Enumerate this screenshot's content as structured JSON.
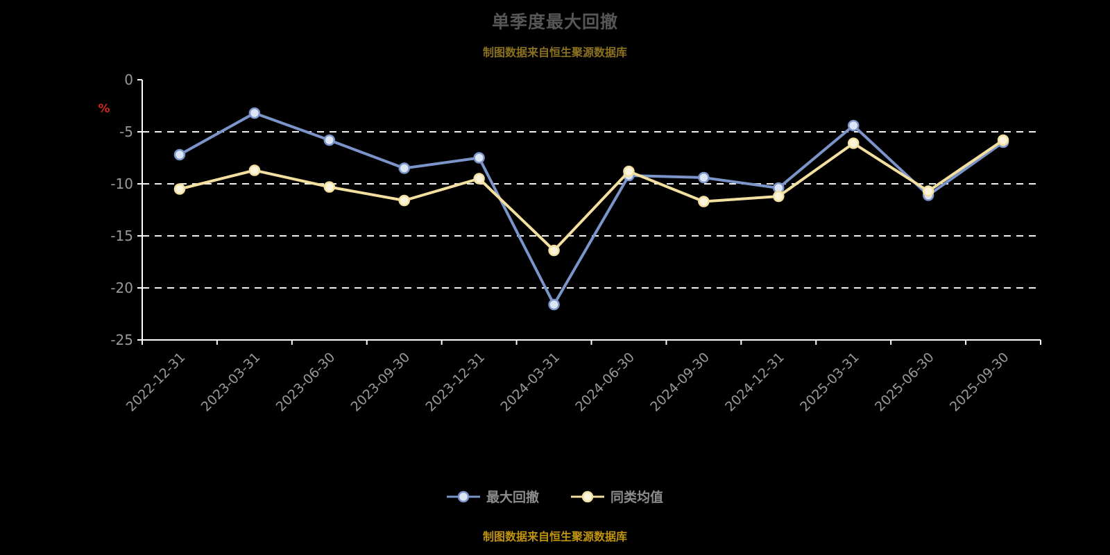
{
  "header": {
    "title": "单季度最大回撤",
    "subtitle": "制图数据来自恒生聚源数据库"
  },
  "footer": {
    "text": "制图数据来自恒生聚源数据库"
  },
  "chart_data": {
    "type": "line",
    "title": "单季度最大回撤",
    "ylabel": "%",
    "ylabel_color": "#d42a1e",
    "categories": [
      "2022-12-31",
      "2023-03-31",
      "2023-06-30",
      "2023-09-30",
      "2023-12-31",
      "2024-03-31",
      "2024-06-30",
      "2024-09-30",
      "2024-12-31",
      "2025-03-31",
      "2025-06-30",
      "2025-09-30"
    ],
    "series": [
      {
        "name": "最大回撤",
        "color": "#7b94c9",
        "marker_fill": "#dce5f4",
        "values": [
          -7.2,
          -3.2,
          -5.8,
          -8.5,
          -7.5,
          -21.6,
          -9.2,
          -9.4,
          -10.4,
          -4.4,
          -11.1,
          -6.0
        ]
      },
      {
        "name": "同类均值",
        "color": "#f3e0a0",
        "marker_fill": "#fbf4da",
        "values": [
          -10.5,
          -8.7,
          -10.3,
          -11.6,
          -9.5,
          -16.4,
          -8.8,
          -11.7,
          -11.2,
          -6.1,
          -10.7,
          -5.8
        ]
      }
    ],
    "ylim": [
      -25,
      0
    ],
    "yticks": [
      0,
      -5,
      -10,
      -15,
      -20,
      -25
    ],
    "grid": true,
    "grid_color": "#f2f2f2",
    "axis_color": "#ffffff",
    "tick_label_color": "#999999",
    "legend_position": "bottom"
  }
}
